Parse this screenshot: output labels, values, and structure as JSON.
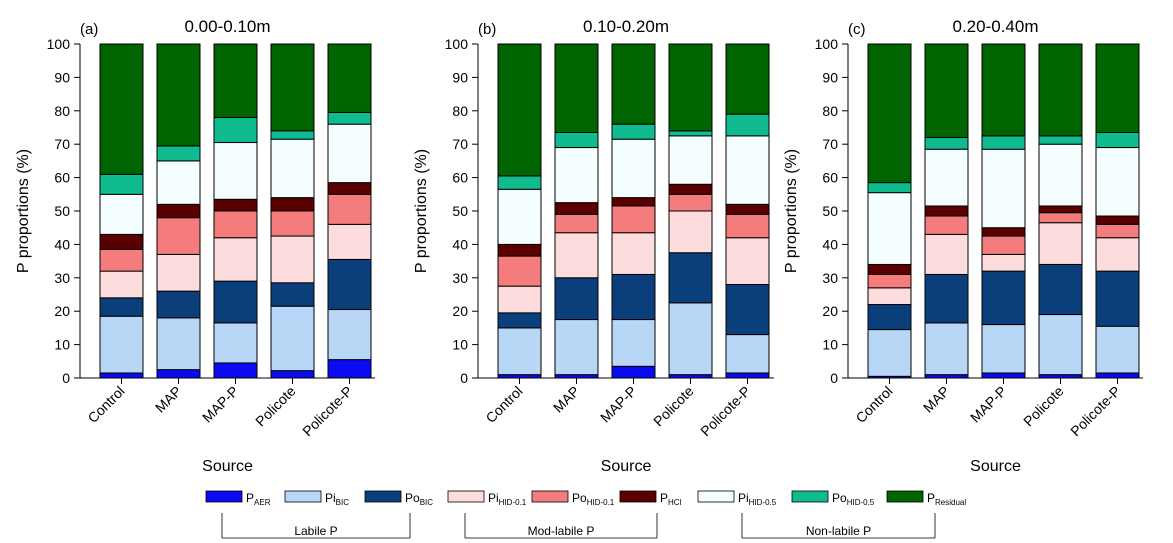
{
  "colors": {
    "P_AER": "#0b0bf2",
    "Pi_BIC": "#b8d6f5",
    "Po_BIC": "#0b3f7c",
    "Pi_HID01": "#fcdcdc",
    "Po_HID01": "#f47c7c",
    "P_HCl": "#5a0000",
    "Pi_HID05": "#f4feff",
    "Po_HID05": "#0fbb8f",
    "P_Residual": "#006400"
  },
  "legend": {
    "items": [
      {
        "key": "P_AER",
        "base": "P",
        "sub": "AER"
      },
      {
        "key": "Pi_BIC",
        "base": "Pi",
        "sub": "BIC"
      },
      {
        "key": "Po_BIC",
        "base": "Po",
        "sub": "BIC"
      },
      {
        "key": "Pi_HID01",
        "base": "Pi",
        "sub": "HID-0.1"
      },
      {
        "key": "Po_HID01",
        "base": "Po",
        "sub": "HID-0.1"
      },
      {
        "key": "P_HCl",
        "base": "P",
        "sub": "HCl"
      },
      {
        "key": "Pi_HID05",
        "base": "Pi",
        "sub": "HID-0.5"
      },
      {
        "key": "Po_HID05",
        "base": "Po",
        "sub": "HID-0.5"
      },
      {
        "key": "P_Residual",
        "base": "P",
        "sub": "Residual"
      }
    ],
    "groups": [
      "Labile P",
      "Mod-labile P",
      "Non-labile P"
    ]
  },
  "chart_data": [
    {
      "type": "bar",
      "stacked": true,
      "panel_label": "(a)",
      "title": "0.00-0.10m",
      "xlabel": "Source",
      "ylabel": "P proportions (%)",
      "ylim": [
        0,
        100
      ],
      "yticks": [
        0,
        10,
        20,
        30,
        40,
        50,
        60,
        70,
        80,
        90,
        100
      ],
      "categories": [
        "Control",
        "MAP",
        "MAP-P",
        "Policote",
        "Policote-P"
      ],
      "series": [
        {
          "key": "P_AER",
          "values": [
            1.5,
            2.5,
            4.5,
            2.2,
            5.5
          ]
        },
        {
          "key": "Pi_BIC",
          "values": [
            17.0,
            15.5,
            12.0,
            19.3,
            15.0
          ]
        },
        {
          "key": "Po_BIC",
          "values": [
            5.5,
            8.0,
            12.5,
            7.0,
            15.0
          ]
        },
        {
          "key": "Pi_HID01",
          "values": [
            8.0,
            11.0,
            13.0,
            14.0,
            10.5
          ]
        },
        {
          "key": "Po_HID01",
          "values": [
            6.5,
            11.0,
            8.0,
            7.5,
            9.0
          ]
        },
        {
          "key": "P_HCl",
          "values": [
            4.5,
            4.0,
            3.5,
            4.0,
            3.5
          ]
        },
        {
          "key": "Pi_HID05",
          "values": [
            12.0,
            13.0,
            17.0,
            17.5,
            17.5
          ]
        },
        {
          "key": "Po_HID05",
          "values": [
            6.0,
            4.5,
            7.5,
            2.5,
            3.5
          ]
        },
        {
          "key": "P_Residual",
          "values": [
            39.0,
            30.5,
            22.0,
            26.0,
            20.5
          ]
        }
      ]
    },
    {
      "type": "bar",
      "stacked": true,
      "panel_label": "(b)",
      "title": "0.10-0.20m",
      "xlabel": "Source",
      "ylabel": "P proportions (%)",
      "ylim": [
        0,
        100
      ],
      "yticks": [
        0,
        10,
        20,
        30,
        40,
        50,
        60,
        70,
        80,
        90,
        100
      ],
      "categories": [
        "Control",
        "MAP",
        "MAP-P",
        "Policote",
        "Policote-P"
      ],
      "series": [
        {
          "key": "P_AER",
          "values": [
            1.0,
            1.0,
            3.5,
            1.0,
            1.5
          ]
        },
        {
          "key": "Pi_BIC",
          "values": [
            14.0,
            16.5,
            14.0,
            21.5,
            11.5
          ]
        },
        {
          "key": "Po_BIC",
          "values": [
            4.5,
            12.5,
            13.5,
            15.0,
            15.0
          ]
        },
        {
          "key": "Pi_HID01",
          "values": [
            8.0,
            13.5,
            12.5,
            12.5,
            14.0
          ]
        },
        {
          "key": "Po_HID01",
          "values": [
            9.0,
            5.5,
            8.0,
            5.0,
            7.0
          ]
        },
        {
          "key": "P_HCl",
          "values": [
            3.5,
            3.5,
            2.5,
            3.0,
            3.0
          ]
        },
        {
          "key": "Pi_HID05",
          "values": [
            16.5,
            16.5,
            17.5,
            14.5,
            20.5
          ]
        },
        {
          "key": "Po_HID05",
          "values": [
            4.0,
            4.5,
            4.5,
            1.5,
            6.5
          ]
        },
        {
          "key": "P_Residual",
          "values": [
            39.5,
            26.5,
            24.0,
            26.0,
            21.0
          ]
        }
      ]
    },
    {
      "type": "bar",
      "stacked": true,
      "panel_label": "(c)",
      "title": "0.20-0.40m",
      "xlabel": "Source",
      "ylabel": "P proportions (%)",
      "ylim": [
        0,
        100
      ],
      "yticks": [
        0,
        10,
        20,
        30,
        40,
        50,
        60,
        70,
        80,
        90,
        100
      ],
      "categories": [
        "Control",
        "MAP",
        "MAP-P",
        "Policote",
        "Policote-P"
      ],
      "series": [
        {
          "key": "P_AER",
          "values": [
            0.5,
            1.0,
            1.5,
            1.0,
            1.5
          ]
        },
        {
          "key": "Pi_BIC",
          "values": [
            14.0,
            15.5,
            14.5,
            18.0,
            14.0
          ]
        },
        {
          "key": "Po_BIC",
          "values": [
            7.5,
            14.5,
            16.0,
            15.0,
            16.5
          ]
        },
        {
          "key": "Pi_HID01",
          "values": [
            5.0,
            12.0,
            5.0,
            12.5,
            10.0
          ]
        },
        {
          "key": "Po_HID01",
          "values": [
            4.0,
            5.5,
            5.5,
            3.0,
            4.0
          ]
        },
        {
          "key": "P_HCl",
          "values": [
            3.0,
            3.0,
            2.5,
            2.0,
            2.5
          ]
        },
        {
          "key": "Pi_HID05",
          "values": [
            21.5,
            17.0,
            23.5,
            18.5,
            20.5
          ]
        },
        {
          "key": "Po_HID05",
          "values": [
            3.0,
            3.5,
            4.0,
            2.5,
            4.5
          ]
        },
        {
          "key": "P_Residual",
          "values": [
            41.5,
            28.0,
            27.5,
            27.5,
            26.5
          ]
        }
      ]
    }
  ]
}
